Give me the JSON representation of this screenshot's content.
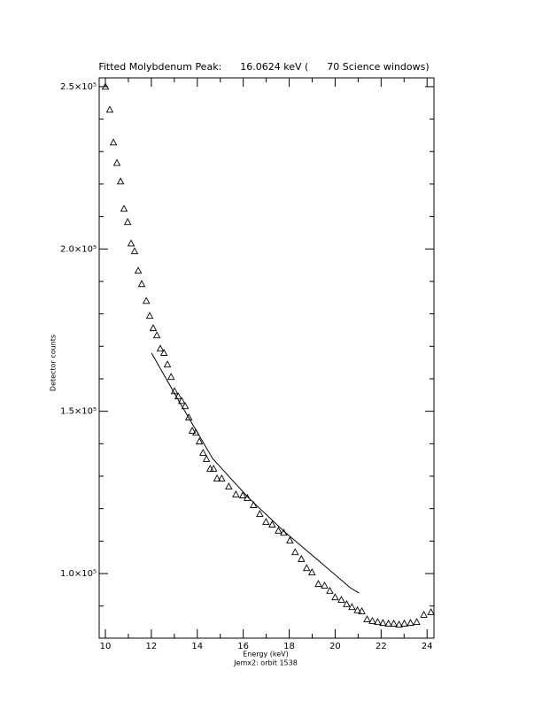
{
  "chart_data": {
    "type": "scatter",
    "title": "Fitted Molybdenum Peak:      16.0624 keV (      70 Science windows)",
    "x_label": "Energy (keV)",
    "subtitle": "Jemx2: orbit 1538",
    "y_label": "Detector counts",
    "xlim": [
      9.73,
      24.3
    ],
    "ylim": [
      80100,
      252700
    ],
    "xticks": [
      10,
      12,
      14,
      16,
      18,
      20,
      22,
      24
    ],
    "xminorticks": [
      11,
      13,
      15,
      17,
      19,
      21,
      23
    ],
    "yticks": [
      {
        "value": 100000,
        "label": "1.0×10⁵"
      },
      {
        "value": 150000,
        "label": "1.5×10⁵"
      },
      {
        "value": 200000,
        "label": "2.0×10⁵"
      },
      {
        "value": 250000,
        "label": "2.5×10⁵"
      }
    ],
    "yminorticks": [
      90000,
      110000,
      120000,
      130000,
      140000,
      160000,
      170000,
      180000,
      190000,
      210000,
      220000,
      230000,
      240000
    ],
    "series": [
      {
        "kind": "points",
        "color": "#000000",
        "x": [
          10.0,
          10.19,
          10.35,
          10.5,
          10.66,
          10.81,
          10.97,
          11.12,
          11.27,
          11.43,
          11.58,
          11.78,
          11.93,
          12.08,
          12.24,
          12.39,
          12.55,
          12.7,
          12.86,
          13.01,
          13.17,
          13.32,
          13.47,
          13.63,
          13.78,
          13.94,
          14.09,
          14.25,
          14.4,
          14.56,
          14.71,
          14.86,
          15.06,
          15.37,
          15.68,
          15.98,
          16.18,
          16.45,
          16.72,
          16.99,
          17.26,
          17.53,
          17.76,
          18.03,
          18.26,
          18.53,
          18.76,
          18.99,
          19.27,
          19.54,
          19.77,
          20.0,
          20.27,
          20.5,
          20.73,
          20.97,
          21.16,
          21.39,
          21.62,
          21.85,
          22.08,
          22.32,
          22.55,
          22.78,
          23.01,
          23.28,
          23.55,
          23.86,
          24.17
        ],
        "values": [
          249900,
          242800,
          232700,
          226400,
          220700,
          212300,
          208200,
          201600,
          199200,
          193200,
          189100,
          183900,
          179300,
          175500,
          173300,
          169200,
          167900,
          164300,
          160500,
          156100,
          154500,
          153100,
          151500,
          148000,
          143900,
          143300,
          140600,
          137100,
          135200,
          132200,
          132200,
          129200,
          129200,
          126700,
          124300,
          124000,
          123200,
          121000,
          118300,
          115800,
          115000,
          113100,
          112500,
          110100,
          106500,
          104400,
          101600,
          100300,
          96700,
          96200,
          94600,
          92600,
          91800,
          90500,
          89600,
          88600,
          88300,
          85800,
          85300,
          85000,
          84700,
          84500,
          84500,
          84200,
          84500,
          84700,
          85000,
          87200,
          88000
        ]
      },
      {
        "kind": "line",
        "color": "#000000",
        "x": [
          12.01,
          13.13,
          14.67,
          16.22,
          17.76,
          19.31,
          20.66,
          21.04
        ],
        "values": [
          167900,
          154000,
          135400,
          123400,
          113100,
          103800,
          95600,
          94000
        ]
      }
    ]
  }
}
